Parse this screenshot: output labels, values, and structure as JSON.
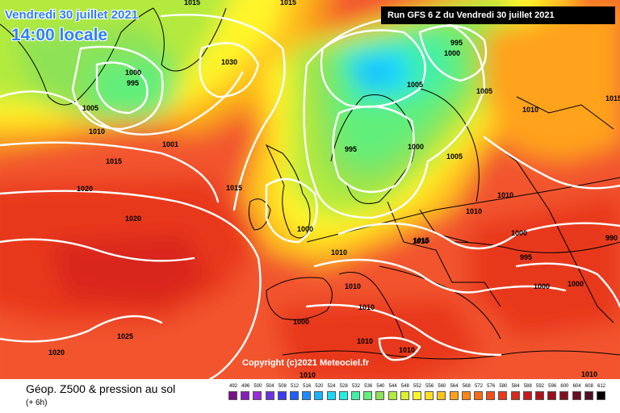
{
  "header": {
    "date_line": "Vendredi 30 juillet 2021",
    "time_line": "14:00 locale",
    "run_info": "Run GFS 6 Z du Vendredi 30 juillet 2021"
  },
  "map": {
    "copyright": "Copyright (c)2021 Meteociel.fr",
    "isobar_labels": [
      "1015",
      "1015",
      "1005",
      "1000",
      "995",
      "1005",
      "1010",
      "1001",
      "1015",
      "1020",
      "1020",
      "1025",
      "1020",
      "995",
      "1000",
      "1005",
      "1000",
      "1010",
      "1015",
      "1030",
      "1010",
      "995",
      "1000",
      "1005",
      "1000",
      "1015",
      "1000",
      "1010",
      "1010",
      "1010",
      "1010",
      "1010",
      "1010",
      "1010",
      "1000",
      "995",
      "1010",
      "1015",
      "1010",
      "990",
      "1000"
    ],
    "colors": {
      "deep_red": "#e8342a",
      "red": "#f2542d",
      "orange": "#f7941d",
      "yellow": "#fff200",
      "green": "#8ed630",
      "teal": "#44e08a",
      "cyan": "#40d6ff",
      "isobar": "#ffffff",
      "coast": "#000000"
    }
  },
  "legend": {
    "title": "Géop. Z500 & pression au sol",
    "subtitle": "(+ 6h)",
    "scale_values": [
      "492",
      "496",
      "500",
      "504",
      "508",
      "512",
      "516",
      "520",
      "524",
      "528",
      "532",
      "536",
      "540",
      "544",
      "548",
      "552",
      "556",
      "560",
      "564",
      "568",
      "572",
      "576",
      "580",
      "584",
      "588",
      "592",
      "596",
      "600",
      "604",
      "608",
      "612"
    ],
    "scale_colors": [
      "#7a0f8a",
      "#8b1bbd",
      "#9b2ad8",
      "#6a33e0",
      "#3b3bf0",
      "#1f5fff",
      "#1c8cff",
      "#16b4ff",
      "#19d8ff",
      "#22f0e0",
      "#3ff0a8",
      "#62ee7a",
      "#8ee255",
      "#b4ea3c",
      "#dcf22c",
      "#fff52a",
      "#ffe023",
      "#ffc21e",
      "#ffa21a",
      "#ff8417",
      "#fb6a16",
      "#f25018",
      "#e8391c",
      "#d9281c",
      "#c7181c",
      "#b0121a",
      "#98101a",
      "#80101e",
      "#6a0f22",
      "#520e24",
      "#000000"
    ]
  }
}
